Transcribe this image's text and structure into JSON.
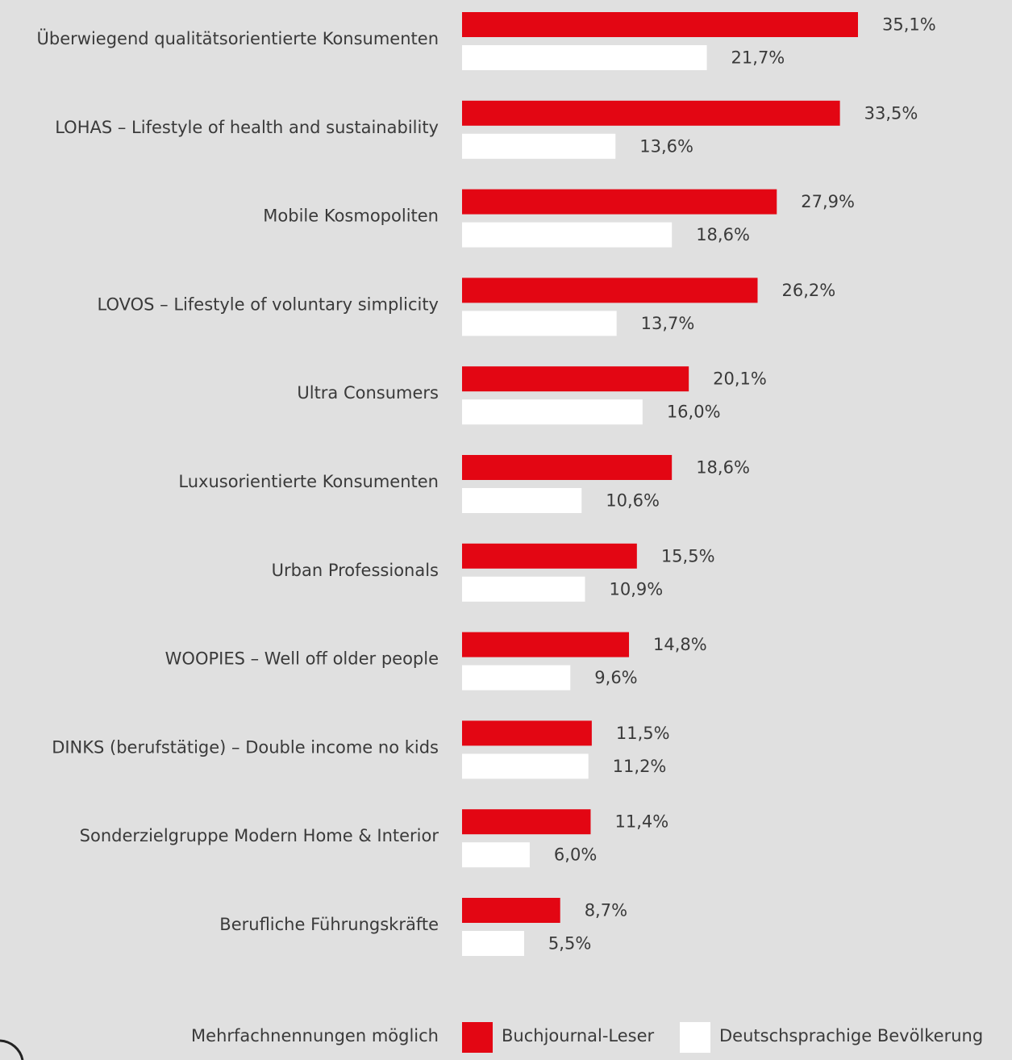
{
  "chart_data": {
    "type": "bar",
    "orientation": "horizontal",
    "categories": [
      "Überwiegend qualitätsorientierte Konsumenten",
      "LOHAS – Lifestyle of health and sustainability",
      "Mobile Kosmopoliten",
      "LOVOS – Lifestyle of voluntary simplicity",
      "Ultra Consumers",
      "Luxusorientierte Konsumenten",
      "Urban Professionals",
      "WOOPIES – Well off older people",
      "DINKS (berufstätige) – Double income no kids",
      "Sonderzielgruppe Modern Home & Interior",
      "Berufliche Führungskräfte"
    ],
    "series": [
      {
        "name": "Buchjournal-Leser",
        "color": "#e30613",
        "values": [
          35.1,
          33.5,
          27.9,
          26.2,
          20.1,
          18.6,
          15.5,
          14.8,
          11.5,
          11.4,
          8.7
        ],
        "value_labels": [
          "35,1%",
          "33,5%",
          "27,9%",
          "26,2%",
          "20,1%",
          "18,6%",
          "15,5%",
          "14,8%",
          "11,5%",
          "11,4%",
          "8,7%"
        ]
      },
      {
        "name": "Deutschsprachige Bevölkerung",
        "color": "#ffffff",
        "values": [
          21.7,
          13.6,
          18.6,
          13.7,
          16.0,
          10.6,
          10.9,
          9.6,
          11.2,
          6.0,
          5.5
        ],
        "value_labels": [
          "21,7%",
          "13,6%",
          "18,6%",
          "13,7%",
          "16,0%",
          "10,6%",
          "10,9%",
          "9,6%",
          "11,2%",
          "6,0%",
          "5,5%"
        ]
      }
    ],
    "note": "Mehrfachnennungen möglich",
    "legend": "bottom"
  }
}
